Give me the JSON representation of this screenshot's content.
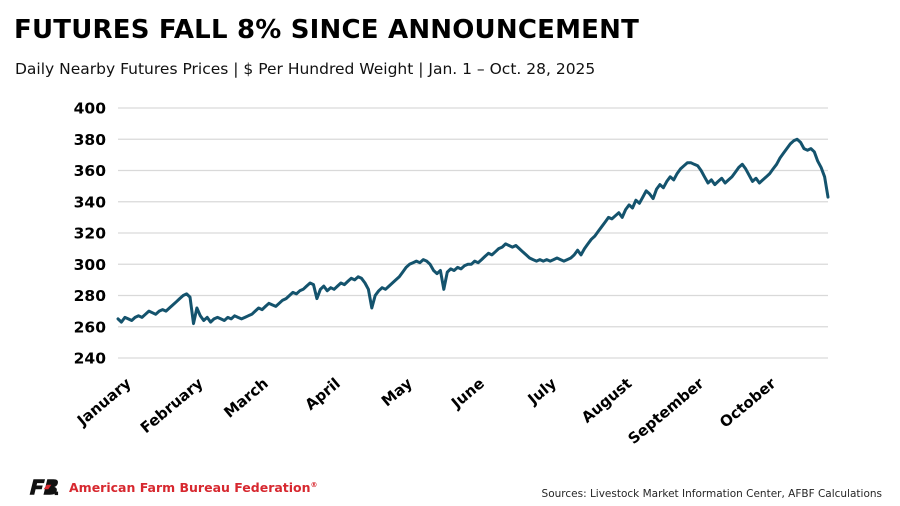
{
  "header": {
    "title": "FUTURES FALL 8% SINCE ANNOUNCEMENT",
    "subtitle": "Daily Nearby Futures Prices | $ Per Hundred Weight | Jan. 1 – Oct. 28, 2025"
  },
  "footer": {
    "logo": "afbf-fb-logo",
    "org": "American Farm Bureau Federation",
    "reg_mark": "®",
    "sources": "Sources: Livestock Market Information Center, AFBF Calculations"
  },
  "colors": {
    "line": "#14536d",
    "grid": "#d9d9d9",
    "text": "#000000",
    "brand_red": "#d7282f",
    "sources_text": "#262626"
  },
  "chart_data": {
    "type": "line",
    "title": "FUTURES FALL 8% SINCE ANNOUNCEMENT",
    "subtitle": "Daily Nearby Futures Prices | $ Per Hundred Weight | Jan. 1 - Oct. 28, 2025",
    "xlabel": "",
    "ylabel": "$ per hundred weight",
    "ylim": [
      240,
      400
    ],
    "ytick_step": 20,
    "yticks": [
      240,
      260,
      280,
      300,
      320,
      340,
      360,
      380,
      400
    ],
    "grid": "horizontal",
    "legend": "none",
    "months": [
      {
        "label": "January",
        "start": 0
      },
      {
        "label": "February",
        "start": 21
      },
      {
        "label": "March",
        "start": 40
      },
      {
        "label": "April",
        "start": 61
      },
      {
        "label": "May",
        "start": 82
      },
      {
        "label": "June",
        "start": 103
      },
      {
        "label": "July",
        "start": 124
      },
      {
        "label": "August",
        "start": 146
      },
      {
        "label": "September",
        "start": 167
      },
      {
        "label": "October",
        "start": 188
      }
    ],
    "values": [
      265,
      263,
      266,
      265,
      264,
      266,
      267,
      266,
      268,
      270,
      269,
      268,
      270,
      271,
      270,
      272,
      274,
      276,
      278,
      280,
      281,
      279,
      262,
      272,
      267,
      264,
      266,
      263,
      265,
      266,
      265,
      264,
      266,
      265,
      267,
      266,
      265,
      266,
      267,
      268,
      270,
      272,
      271,
      273,
      275,
      274,
      273,
      275,
      277,
      278,
      280,
      282,
      281,
      283,
      284,
      286,
      288,
      287,
      278,
      284,
      286,
      283,
      285,
      284,
      286,
      288,
      287,
      289,
      291,
      290,
      292,
      291,
      288,
      284,
      272,
      280,
      283,
      285,
      284,
      286,
      288,
      290,
      292,
      295,
      298,
      300,
      301,
      302,
      301,
      303,
      302,
      300,
      296,
      294,
      296,
      284,
      295,
      297,
      296,
      298,
      297,
      299,
      300,
      300,
      302,
      301,
      303,
      305,
      307,
      306,
      308,
      310,
      311,
      313,
      312,
      311,
      312,
      310,
      308,
      306,
      304,
      303,
      302,
      303,
      302,
      303,
      302,
      303,
      304,
      303,
      302,
      303,
      304,
      306,
      309,
      306,
      310,
      313,
      316,
      318,
      321,
      324,
      327,
      330,
      329,
      331,
      333,
      330,
      335,
      338,
      336,
      341,
      339,
      343,
      347,
      345,
      342,
      348,
      351,
      349,
      353,
      356,
      354,
      358,
      361,
      363,
      365,
      365,
      364,
      363,
      360,
      356,
      352,
      354,
      351,
      353,
      355,
      352,
      354,
      356,
      359,
      362,
      364,
      361,
      357,
      353,
      355,
      352,
      354,
      356,
      358,
      361,
      364,
      368,
      371,
      374,
      377,
      379,
      380,
      378,
      374,
      373,
      374,
      372,
      366,
      362,
      356,
      343
    ]
  }
}
